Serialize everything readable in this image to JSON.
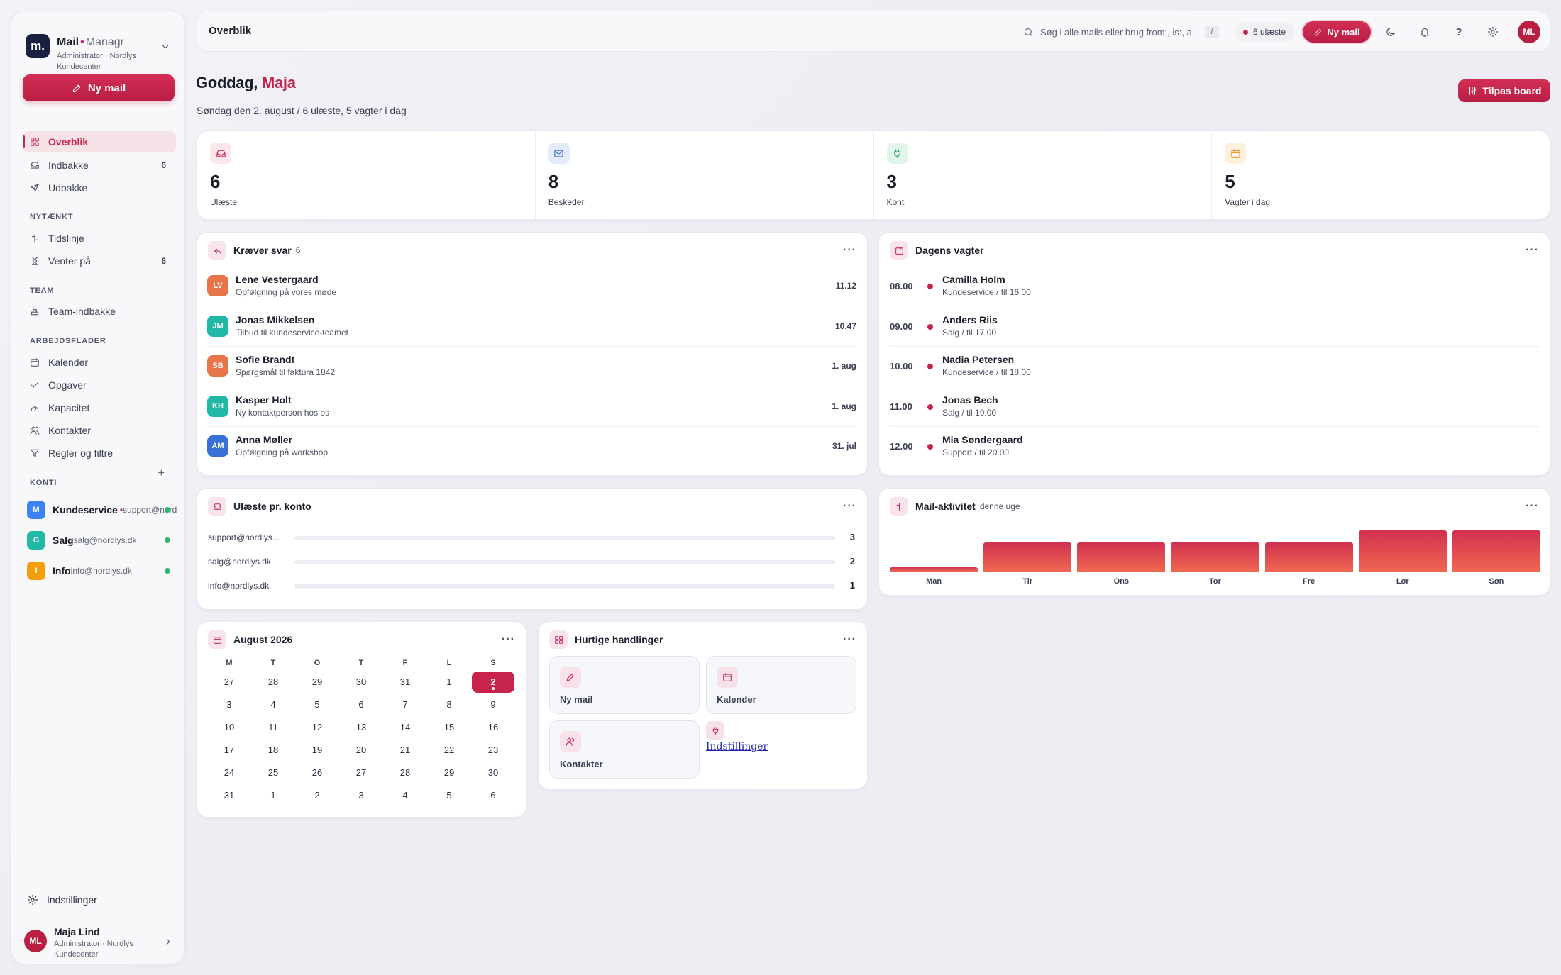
{
  "brand": {
    "name": "Mail",
    "suffix": "Managr",
    "logo_letter": "m.",
    "sub": "Administrator · Nordlys Kundecenter"
  },
  "sidebar": {
    "new_mail_label": "Ny mail",
    "main_items": [
      {
        "label": "Overblik",
        "icon": "grid-icon",
        "count": "",
        "active": true
      },
      {
        "label": "Indbakke",
        "icon": "inbox-icon",
        "count": "6"
      },
      {
        "label": "Udbakke",
        "icon": "send-icon",
        "count": ""
      }
    ],
    "sections": {
      "nytaenkt": "NYTÆNKT",
      "team": "TEAM",
      "arbejdsflader": "ARBEJDSFLADER",
      "konti": "KONTI"
    },
    "nytaenkt_items": [
      {
        "label": "Tidslinje",
        "icon": "timeline-icon",
        "count": ""
      },
      {
        "label": "Venter på",
        "icon": "hourglass-icon",
        "count": "6"
      }
    ],
    "team_items": [
      {
        "label": "Team-indbakke",
        "icon": "team-inbox-icon"
      }
    ],
    "work_items": [
      {
        "label": "Kalender",
        "icon": "calendar-icon"
      },
      {
        "label": "Opgaver",
        "icon": "check-icon"
      },
      {
        "label": "Kapacitet",
        "icon": "gauge-icon"
      },
      {
        "label": "Kontakter",
        "icon": "users-icon"
      },
      {
        "label": "Regler og filtre",
        "icon": "filter-icon"
      }
    ],
    "konti_add": "+",
    "accounts": [
      {
        "letter": "M",
        "name": "Kundeservice",
        "email": "support@nordlys.dk",
        "color": "#3b82f6",
        "unread_dot": "•"
      },
      {
        "letter": "G",
        "name": "Salg",
        "email": "salg@nordlys.dk",
        "color": "#22b8a6",
        "unread_dot": ""
      },
      {
        "letter": "I",
        "name": "Info",
        "email": "info@nordlys.dk",
        "color": "#f59e0b",
        "unread_dot": ""
      }
    ],
    "settings_label": "Indstillinger",
    "user": {
      "initials": "ML",
      "name": "Maja Lind",
      "role": "Administrator · Nordlys Kundecenter"
    }
  },
  "topbar": {
    "title": "Overblik",
    "search_placeholder": "Søg i alle mails eller brug from:, is:, a",
    "search_kbd": "/",
    "unread_pill": "6 ulæste",
    "new_mail": "Ny mail",
    "help": "?",
    "avatar": "ML"
  },
  "header": {
    "greeting": "Goddag, ",
    "name": "Maja",
    "subline": "Søndag den 2. august / 6 ulæste, 5 vagter i dag",
    "customize": "Tilpas board"
  },
  "stats": [
    {
      "value": "6",
      "label": "Ulæste",
      "icon": "inbox-icon",
      "bg": "#fbe6eb",
      "fg": "#c8234a"
    },
    {
      "value": "8",
      "label": "Beskeder",
      "icon": "mail-icon",
      "bg": "#e4ecfb",
      "fg": "#3b6fd8"
    },
    {
      "value": "3",
      "label": "Konti",
      "icon": "plug-icon",
      "bg": "#e1f5ea",
      "fg": "#22a06b"
    },
    {
      "value": "5",
      "label": "Vagter i dag",
      "icon": "calendar-icon",
      "bg": "#fdf0dd",
      "fg": "#e08a1e"
    }
  ],
  "reply": {
    "title": "Kræver svar",
    "count": "6",
    "more": "···",
    "items": [
      {
        "initials": "LV",
        "name": "Lene Vestergaard",
        "subject": "Opfølgning på vores møde",
        "time": "11.12",
        "color": "#e8744a"
      },
      {
        "initials": "JM",
        "name": "Jonas Mikkelsen",
        "subject": "Tilbud til kundeservice-teamet",
        "time": "10.47",
        "color": "#22b8a6"
      },
      {
        "initials": "SB",
        "name": "Sofie Brandt",
        "subject": "Spørgsmål til faktura 1842",
        "time": "1. aug",
        "color": "#e8744a"
      },
      {
        "initials": "KH",
        "name": "Kasper Holt",
        "subject": "Ny kontaktperson hos os",
        "time": "1. aug",
        "color": "#22b8a6"
      },
      {
        "initials": "AM",
        "name": "Anna Møller",
        "subject": "Opfølgning på workshop",
        "time": "31. jul",
        "color": "#3b6fd8"
      }
    ]
  },
  "shifts": {
    "title": "Dagens vagter",
    "more": "···",
    "items": [
      {
        "time": "08.00",
        "name": "Camilla Holm",
        "detail": "Kundeservice / til 16.00"
      },
      {
        "time": "09.00",
        "name": "Anders Riis",
        "detail": "Salg / til 17.00"
      },
      {
        "time": "10.00",
        "name": "Nadia Petersen",
        "detail": "Kundeservice / til 18.00"
      },
      {
        "time": "11.00",
        "name": "Jonas Bech",
        "detail": "Salg / til 19.00"
      },
      {
        "time": "12.00",
        "name": "Mia Søndergaard",
        "detail": "Support / til 20.00"
      }
    ]
  },
  "unread_accounts": {
    "title": "Ulæste pr. konto",
    "more": "···",
    "items": [
      {
        "label": "support@nordlys...",
        "value": "3",
        "fraction": 0
      },
      {
        "label": "salg@nordlys.dk",
        "value": "2",
        "fraction": 0
      },
      {
        "label": "info@nordlys.dk",
        "value": "1",
        "fraction": 0
      }
    ]
  },
  "activity": {
    "title": "Mail-aktivitet",
    "subtitle": "denne uge",
    "more": "···"
  },
  "chart_data": {
    "type": "bar",
    "title": "Mail-aktivitet",
    "subtitle": "denne uge",
    "categories": [
      "Man",
      "Tir",
      "Ons",
      "Tor",
      "Fre",
      "Lør",
      "Søn"
    ],
    "values": [
      0.1,
      0.7,
      0.7,
      0.7,
      0.7,
      1.0,
      1.0
    ],
    "ylim": [
      0,
      1
    ],
    "grid": false,
    "xlabel": "",
    "ylabel": ""
  },
  "calendar": {
    "title": "August 2026",
    "more": "···",
    "weekdays": [
      "M",
      "T",
      "O",
      "T",
      "F",
      "L",
      "S"
    ],
    "days": [
      "27",
      "28",
      "29",
      "30",
      "31",
      "1",
      "2",
      "3",
      "4",
      "5",
      "6",
      "7",
      "8",
      "9",
      "10",
      "11",
      "12",
      "13",
      "14",
      "15",
      "16",
      "17",
      "18",
      "19",
      "20",
      "21",
      "22",
      "23",
      "24",
      "25",
      "26",
      "27",
      "28",
      "29",
      "30",
      "31",
      "1",
      "2",
      "3",
      "4",
      "5",
      "6"
    ],
    "today_index": 6
  },
  "quick": {
    "title": "Hurtige handlinger",
    "more": "···",
    "items": [
      {
        "label": "Ny mail",
        "icon": "pen-icon"
      },
      {
        "label": "Kalender",
        "icon": "calendar-icon"
      },
      {
        "label": "Kontakter",
        "icon": "users-icon"
      },
      {
        "label": "Indstillinger",
        "icon": "plug-icon"
      }
    ]
  }
}
